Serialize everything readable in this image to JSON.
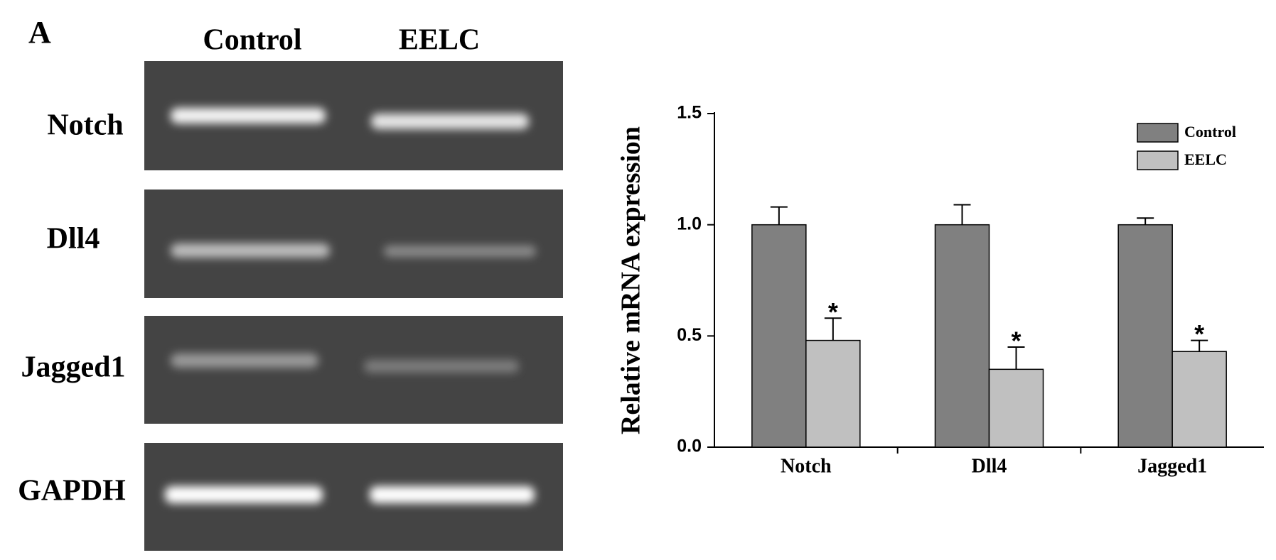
{
  "gel": {
    "panel_label": "A",
    "columns": [
      "Control",
      "EELC"
    ],
    "rows": [
      "Notch",
      "Dll4",
      "Jagged1",
      "GAPDH"
    ]
  },
  "chart_data": {
    "type": "bar",
    "ylabel": "Relative mRNA expression",
    "categories": [
      "Notch",
      "Dll4",
      "Jagged1"
    ],
    "series": [
      {
        "name": "Control",
        "color": "#808080",
        "values": [
          1.0,
          1.0,
          1.0
        ],
        "errors": [
          0.08,
          0.09,
          0.03
        ]
      },
      {
        "name": "EELC",
        "color": "#c0c0c0",
        "values": [
          0.48,
          0.35,
          0.43
        ],
        "errors": [
          0.1,
          0.1,
          0.05
        ],
        "marker_labels": [
          "*",
          "*",
          "*"
        ]
      }
    ],
    "ylim": [
      0,
      1.5
    ],
    "yticks": [
      {
        "value": 0,
        "label": "0.0"
      },
      {
        "value": 0.5,
        "label": "0.5"
      },
      {
        "value": 1,
        "label": "1.0"
      },
      {
        "value": 1.5,
        "label": "1.5"
      }
    ],
    "legend": "top-right"
  }
}
